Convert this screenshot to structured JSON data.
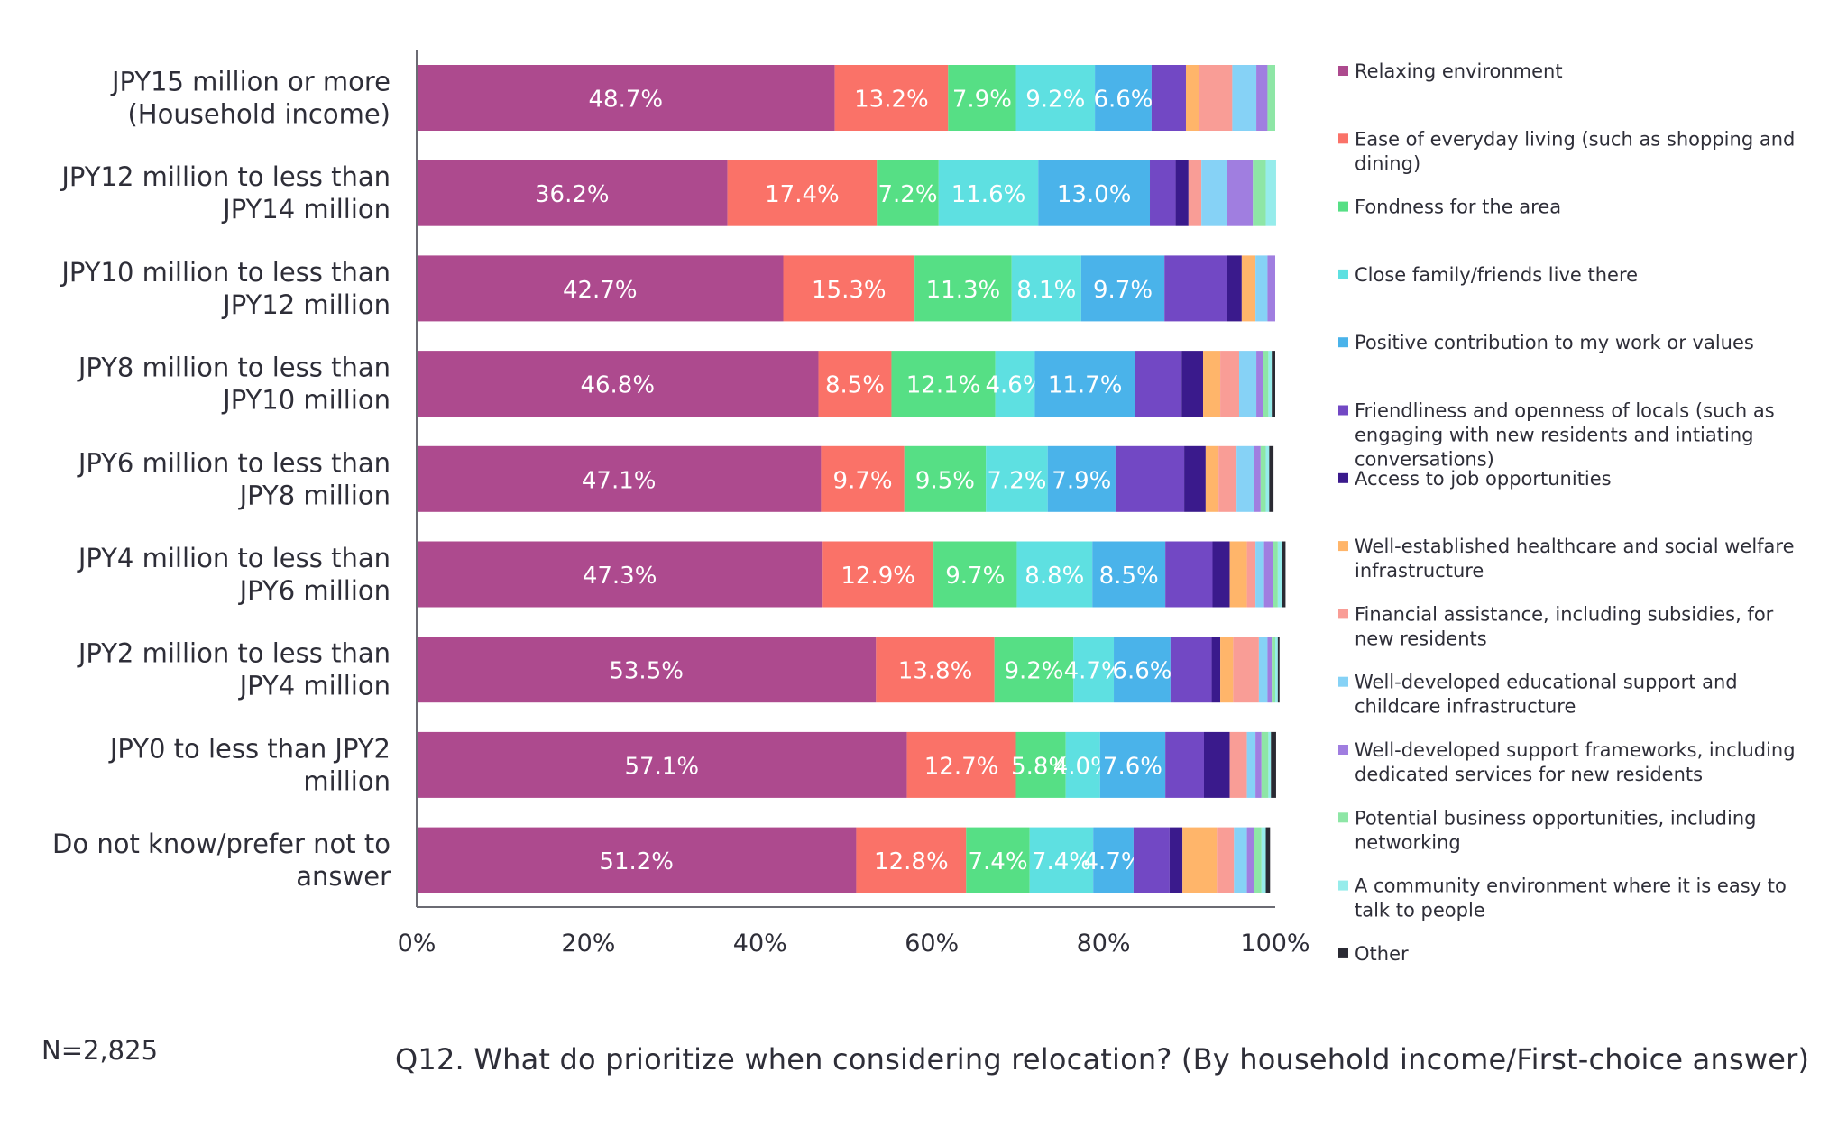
{
  "chart_data": {
    "type": "bar",
    "orientation": "horizontal",
    "stacked": true,
    "title": "Q12. What do prioritize when considering relocation? (By household income/First-choice answer)",
    "note": "N=2,825",
    "xlim": [
      0,
      100
    ],
    "x_ticks": [
      "0%",
      "20%",
      "40%",
      "60%",
      "80%",
      "100%"
    ],
    "legend_position": "right",
    "grid": false,
    "categories": [
      [
        "JPY15 million or more",
        "(Household income)"
      ],
      [
        "JPY12 million to less than",
        "JPY14 million"
      ],
      [
        "JPY10 million to less than",
        "JPY12 million"
      ],
      [
        "JPY8 million to less than",
        "JPY10 million"
      ],
      [
        "JPY6 million to less than",
        "JPY8 million"
      ],
      [
        "JPY4 million to less than",
        "JPY6 million"
      ],
      [
        "JPY2 million to less than",
        "JPY4 million"
      ],
      [
        "JPY0 to less than JPY2",
        "million"
      ],
      [
        "Do not know/prefer not to",
        "answer"
      ]
    ],
    "series": [
      {
        "name": [
          "Relaxing environment"
        ],
        "color": "#ad4a8e",
        "values": [
          48.7,
          36.2,
          42.7,
          46.8,
          47.1,
          47.3,
          53.5,
          57.1,
          51.2
        ],
        "labels": [
          "48.7%",
          "36.2%",
          "42.7%",
          "46.8%",
          "47.1%",
          "47.3%",
          "53.5%",
          "57.1%",
          "51.2%"
        ]
      },
      {
        "name": [
          "Ease of everyday living (such as shopping and",
          "dining)"
        ],
        "color": "#fa7268",
        "values": [
          13.2,
          17.4,
          15.3,
          8.5,
          9.7,
          12.9,
          13.8,
          12.7,
          12.8
        ],
        "labels": [
          "13.2%",
          "17.4%",
          "15.3%",
          "8.5%",
          "9.7%",
          "12.9%",
          "13.8%",
          "12.7%",
          "12.8%"
        ]
      },
      {
        "name": [
          "Fondness for the area"
        ],
        "color": "#56df85",
        "values": [
          7.9,
          7.2,
          11.3,
          12.1,
          9.5,
          9.7,
          9.2,
          5.8,
          7.4
        ],
        "labels": [
          "7.9%",
          "7.2%",
          "11.3%",
          "12.1%",
          "9.5%",
          "9.7%",
          "9.2%",
          "5.8%",
          "7.4%"
        ]
      },
      {
        "name": [
          "Close family/friends live there"
        ],
        "color": "#5ee0e1",
        "values": [
          9.2,
          11.6,
          8.1,
          4.6,
          7.2,
          8.8,
          4.7,
          4.0,
          7.4
        ],
        "labels": [
          "9.2%",
          "11.6%",
          "8.1%",
          "4.6%",
          "7.2%",
          "8.8%",
          "4.7%",
          "4.0%",
          "7.4%"
        ]
      },
      {
        "name": [
          "Positive contribution to my work or values"
        ],
        "color": "#4ab3ea",
        "values": [
          6.6,
          13.0,
          9.7,
          11.7,
          7.9,
          8.5,
          6.6,
          7.6,
          4.7
        ],
        "labels": [
          "6.6%",
          "13.0%",
          "9.7%",
          "11.7%",
          "7.9%",
          "8.5%",
          "6.6%",
          "7.6%",
          "4.7%"
        ]
      },
      {
        "name": [
          "Friendliness and openness of locals (such as",
          "engaging with new residents and intiating",
          "conversations)"
        ],
        "color": "#7248c4",
        "values": [
          4.0,
          3.0,
          7.3,
          5.4,
          8.0,
          5.5,
          4.8,
          4.5,
          4.2
        ],
        "labels": [
          "",
          "",
          "",
          "",
          "",
          "",
          "",
          "",
          ""
        ]
      },
      {
        "name": [
          "Access to job opportunities"
        ],
        "color": "#3a1a8c",
        "values": [
          0,
          1.5,
          1.7,
          2.5,
          2.5,
          2.0,
          1.0,
          3.0,
          1.5
        ],
        "labels": [
          "",
          "",
          "",
          "",
          "",
          "",
          "",
          "",
          ""
        ]
      },
      {
        "name": [
          "Well-established healthcare and social welfare",
          "infrastructure"
        ],
        "color": "#ffb56a",
        "values": [
          1.5,
          0,
          1.6,
          2.0,
          1.5,
          2.0,
          1.5,
          0,
          4.0
        ],
        "labels": [
          "",
          "",
          "",
          "",
          "",
          "",
          "",
          "",
          ""
        ]
      },
      {
        "name": [
          "Financial assistance, including subsidies, for",
          "new residents"
        ],
        "color": "#f99d96",
        "values": [
          3.9,
          1.5,
          0,
          2.2,
          2.1,
          1.0,
          3.0,
          2.0,
          2.0
        ],
        "labels": [
          "",
          "",
          "",
          "",
          "",
          "",
          "",
          "",
          ""
        ]
      },
      {
        "name": [
          "Well-developed educational support and",
          "childcare infrastructure"
        ],
        "color": "#86d2f6",
        "values": [
          2.8,
          3.0,
          1.4,
          2.0,
          2.0,
          1.0,
          1.0,
          1.0,
          1.5
        ],
        "labels": [
          "",
          "",
          "",
          "",
          "",
          "",
          "",
          "",
          ""
        ]
      },
      {
        "name": [
          "Well-developed support frameworks, including",
          "dedicated services for new residents"
        ],
        "color": "#a07ee0",
        "values": [
          1.3,
          3.0,
          0.9,
          0.8,
          0.8,
          1.0,
          0.5,
          0.7,
          0.8
        ],
        "labels": [
          "",
          "",
          "",
          "",
          "",
          "",
          "",
          "",
          ""
        ]
      },
      {
        "name": [
          "Potential business opportunities, including",
          "networking"
        ],
        "color": "#8ee6a6",
        "values": [
          0.9,
          1.5,
          0,
          0.6,
          0.6,
          0.6,
          0.4,
          0.8,
          0.9
        ],
        "labels": [
          "",
          "",
          "",
          "",
          "",
          "",
          "",
          "",
          ""
        ]
      },
      {
        "name": [
          "A community environment where it is easy to",
          "talk to people"
        ],
        "color": "#96eceb",
        "values": [
          0,
          1.2,
          0,
          0.4,
          0.4,
          0.5,
          0.3,
          0.3,
          0.5
        ],
        "labels": [
          "",
          "",
          "",
          "",
          "",
          "",
          "",
          "",
          ""
        ]
      },
      {
        "name": [
          "Other"
        ],
        "color": "#2a2a33",
        "values": [
          0,
          0,
          0,
          0.4,
          0.5,
          0.4,
          0.2,
          0.6,
          0.5
        ],
        "labels": [
          "",
          "",
          "",
          "",
          "",
          "",
          "",
          "",
          ""
        ]
      }
    ]
  }
}
